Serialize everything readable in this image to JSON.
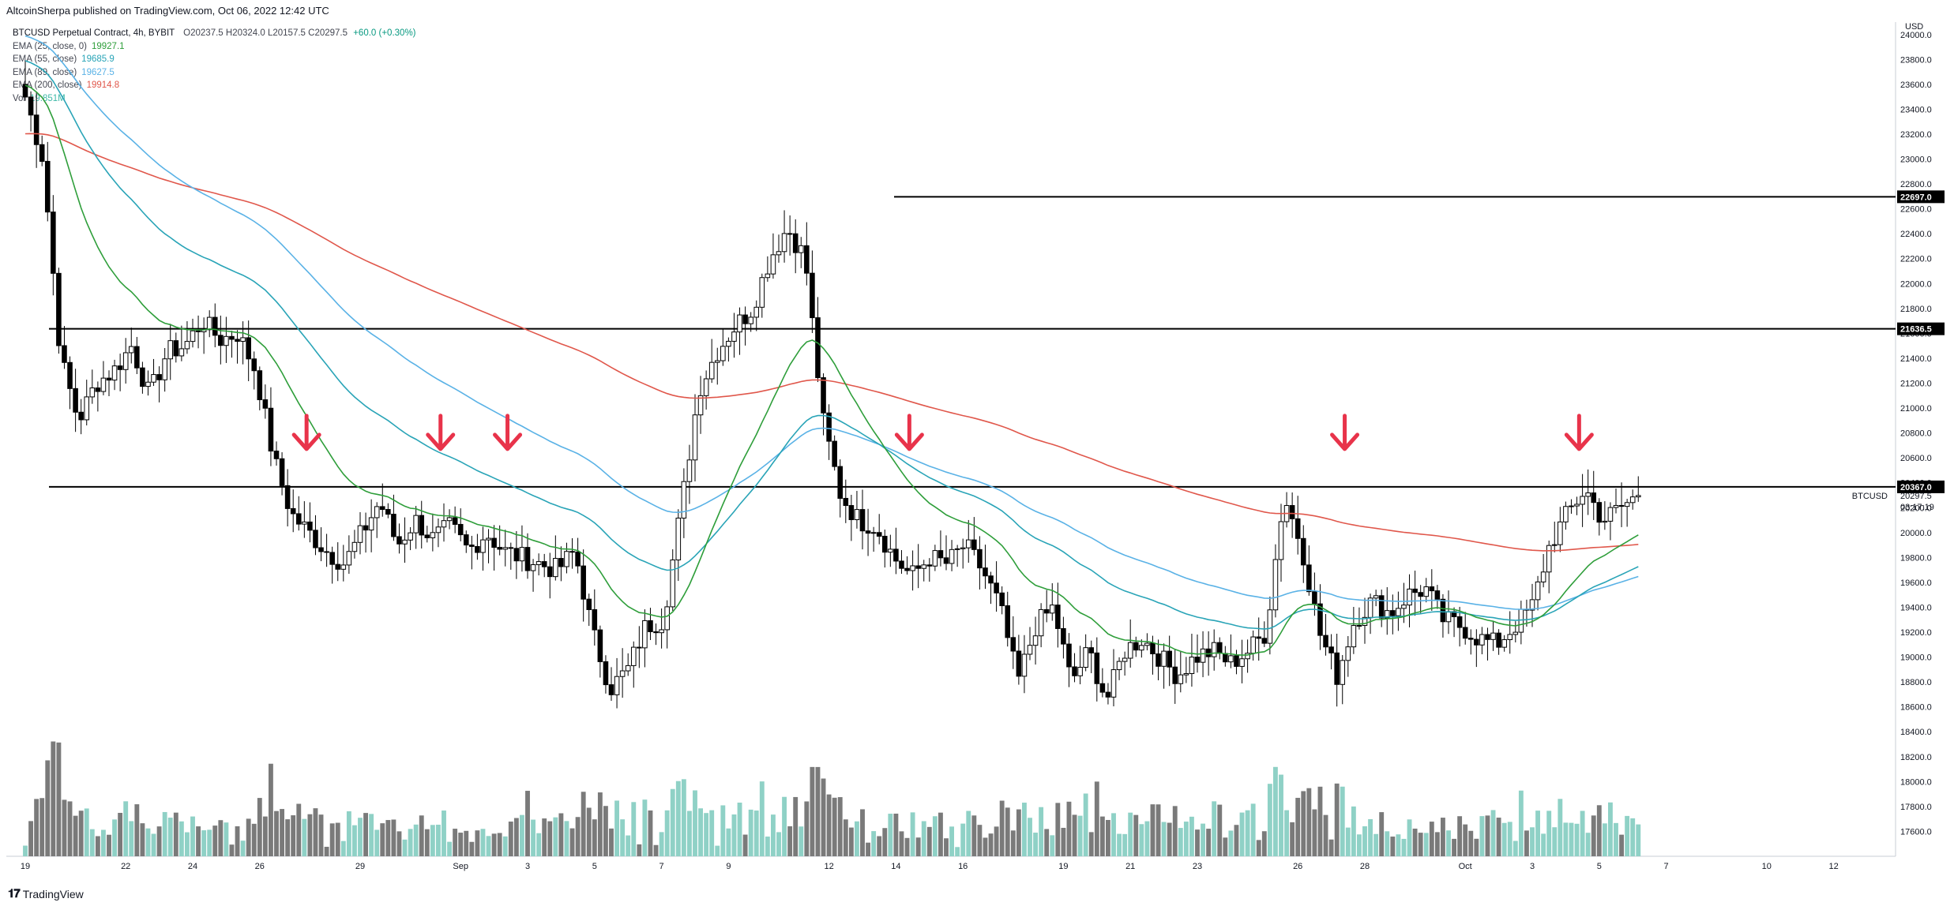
{
  "header": {
    "published": "AltcoinSherpa published on TradingView.com, Oct 06, 2022 12:42 UTC"
  },
  "legend": {
    "symbol": "BTCUSD Perpetual Contract, 4h, BYBIT",
    "ohlc": {
      "o": "O20237.5",
      "h": "H20324.0",
      "l": "L20157.5",
      "c": "C20297.5",
      "change": "+60.0 (+0.30%)"
    },
    "indicators": [
      {
        "label": "EMA (25, close, 0)",
        "value": "19927.1",
        "color": "#2e9e3a"
      },
      {
        "label": "EMA (55, close)",
        "value": "19685.9",
        "color": "#29a4b7"
      },
      {
        "label": "EMA (89, close)",
        "value": "19627.5",
        "color": "#5ab2e6"
      },
      {
        "label": "EMA (200, close)",
        "value": "19914.8",
        "color": "#e0574b"
      },
      {
        "label": "Vol",
        "value": "19.851M",
        "color": "#3fb9a8"
      }
    ]
  },
  "footer": {
    "brand": "TradingView"
  },
  "chart_data": {
    "type": "candlestick",
    "symbol": "BTCUSD",
    "timeframe": "4h",
    "price_axis": {
      "currency": "USD",
      "ticks": [
        17600,
        17800,
        18000,
        18200,
        18400,
        18600,
        18800,
        19000,
        19200,
        19400,
        19600,
        19800,
        20000,
        20200,
        20400,
        20600,
        20800,
        21000,
        21200,
        21400,
        21600,
        21800,
        22000,
        22200,
        22400,
        22600,
        22800,
        23000,
        23200,
        23400,
        23600,
        23800,
        24000
      ],
      "ylim": [
        17400,
        24100
      ]
    },
    "time_axis": {
      "ticks": [
        "19",
        "22",
        "24",
        "26",
        "29",
        "Sep",
        "3",
        "5",
        "7",
        "9",
        "12",
        "14",
        "16",
        "19",
        "21",
        "23",
        "26",
        "28",
        "Oct",
        "3",
        "5",
        "7",
        "10",
        "12"
      ]
    },
    "horizontal_levels": [
      {
        "price": 22697.0,
        "label": "22697.0"
      },
      {
        "price": 21636.5,
        "label": "21636.5"
      },
      {
        "price": 20367.0,
        "label": "20367.0"
      }
    ],
    "last_price": {
      "price": 20297.5,
      "label": "20297.5",
      "symbol": "BTCUSD",
      "countdown": "03:17:19"
    },
    "rejection_arrows": [
      "Aug 27",
      "Aug 31",
      "Sep 2",
      "Sep 14",
      "Sep 27",
      "Oct 4"
    ],
    "close_path": [
      [
        "Aug 19",
        23500
      ],
      [
        "Aug 19",
        23000
      ],
      [
        "Aug 20",
        21400
      ],
      [
        "Aug 20",
        20900
      ],
      [
        "Aug 21",
        21200
      ],
      [
        "Aug 22",
        21300
      ],
      [
        "Aug 22",
        21500
      ],
      [
        "Aug 23",
        21100
      ],
      [
        "Aug 23",
        21450
      ],
      [
        "Aug 24",
        21500
      ],
      [
        "Aug 25",
        21700
      ],
      [
        "Aug 25",
        21550
      ],
      [
        "Aug 26",
        21600
      ],
      [
        "Aug 26",
        21300
      ],
      [
        "Aug 26",
        20600
      ],
      [
        "Aug 27",
        20150
      ],
      [
        "Aug 28",
        20000
      ],
      [
        "Aug 28",
        19850
      ],
      [
        "Aug 29",
        19750
      ],
      [
        "Aug 29",
        20000
      ],
      [
        "Aug 30",
        20250
      ],
      [
        "Aug 30",
        19900
      ],
      [
        "Aug 31",
        20100
      ],
      [
        "Aug 31",
        19950
      ],
      [
        "Sep 1",
        20050
      ],
      [
        "Sep 2",
        19850
      ],
      [
        "Sep 2",
        20000
      ],
      [
        "Sep 3",
        19850
      ],
      [
        "Sep 4",
        19800
      ],
      [
        "Sep 5",
        19750
      ],
      [
        "Sep 6",
        19700
      ],
      [
        "Sep 6",
        19850
      ],
      [
        "Sep 7",
        19200
      ],
      [
        "Sep 7",
        18750
      ],
      [
        "Sep 8",
        18900
      ],
      [
        "Sep 8",
        19250
      ],
      [
        "Sep 9",
        19300
      ],
      [
        "Sep 9",
        20200
      ],
      [
        "Sep 10",
        21150
      ],
      [
        "Sep 11",
        21450
      ],
      [
        "Sep 11",
        21650
      ],
      [
        "Sep 12",
        21800
      ],
      [
        "Sep 12",
        22200
      ],
      [
        "Sep 13",
        22450
      ],
      [
        "Sep 13",
        22200
      ],
      [
        "Sep 13",
        20900
      ],
      [
        "Sep 14",
        20300
      ],
      [
        "Sep 14",
        20100
      ],
      [
        "Sep 15",
        20050
      ],
      [
        "Sep 15",
        19800
      ],
      [
        "Sep 16",
        19650
      ],
      [
        "Sep 16",
        19800
      ],
      [
        "Sep 17",
        19750
      ],
      [
        "Sep 18",
        19900
      ],
      [
        "Sep 18",
        19700
      ],
      [
        "Sep 19",
        19400
      ],
      [
        "Sep 19",
        18800
      ],
      [
        "Sep 20",
        19250
      ],
      [
        "Sep 20",
        19400
      ],
      [
        "Sep 21",
        18800
      ],
      [
        "Sep 21",
        19050
      ],
      [
        "Sep 22",
        18650
      ],
      [
        "Sep 22",
        19050
      ],
      [
        "Sep 23",
        19150
      ],
      [
        "Sep 23",
        19000
      ],
      [
        "Sep 24",
        18850
      ],
      [
        "Sep 25",
        19000
      ],
      [
        "Sep 25",
        19050
      ],
      [
        "Sep 26",
        18950
      ],
      [
        "Sep 26",
        19050
      ],
      [
        "Sep 27",
        19200
      ],
      [
        "Sep 27",
        20300
      ],
      [
        "Sep 27",
        19900
      ],
      [
        "Sep 28",
        19200
      ],
      [
        "Sep 28",
        18850
      ],
      [
        "Sep 29",
        19300
      ],
      [
        "Sep 29",
        19450
      ],
      [
        "Sep 30",
        19350
      ],
      [
        "Sep 30",
        19500
      ],
      [
        "Oct 1",
        19550
      ],
      [
        "Oct 1",
        19300
      ],
      [
        "Oct 2",
        19250
      ],
      [
        "Oct 2",
        19150
      ],
      [
        "Oct 3",
        19100
      ],
      [
        "Oct 3",
        19250
      ],
      [
        "Oct 4",
        19400
      ],
      [
        "Oct 4",
        19900
      ],
      [
        "Oct 4",
        20150
      ],
      [
        "Oct 5",
        20350
      ],
      [
        "Oct 5",
        20100
      ],
      [
        "Oct 6",
        20200
      ],
      [
        "Oct 6",
        20297.5
      ]
    ]
  }
}
